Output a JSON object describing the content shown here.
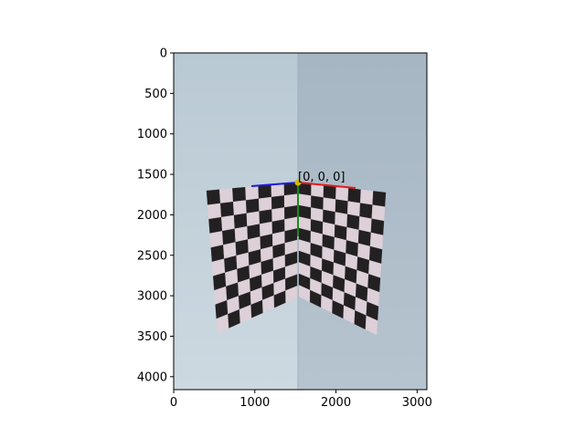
{
  "figure": {
    "image_extent": {
      "width": 3120,
      "height": 4160
    },
    "axes": {
      "y_ticks": [
        {
          "value": 0,
          "label": "0"
        },
        {
          "value": 500,
          "label": "500"
        },
        {
          "value": 1000,
          "label": "1000"
        },
        {
          "value": 1500,
          "label": "1500"
        },
        {
          "value": 2000,
          "label": "2000"
        },
        {
          "value": 2500,
          "label": "2500"
        },
        {
          "value": 3000,
          "label": "3000"
        },
        {
          "value": 3500,
          "label": "3500"
        },
        {
          "value": 4000,
          "label": "4000"
        }
      ],
      "x_ticks": [
        {
          "value": 0,
          "label": "0"
        },
        {
          "value": 1000,
          "label": "1000"
        },
        {
          "value": 2000,
          "label": "2000"
        },
        {
          "value": 3000,
          "label": "3000"
        }
      ]
    },
    "annotation": {
      "label": "[0, 0, 0]"
    },
    "colors": {
      "axis_x_line": "#e61a1a",
      "axis_y_line": "#1a8a1a",
      "axis_z_line": "#1a1ae6",
      "origin_marker": "#d4b800",
      "wall_left": "#c3d2dc",
      "wall_right": "#aebdca",
      "board_light": "#ddd0d8",
      "board_dark": "#232022"
    }
  }
}
